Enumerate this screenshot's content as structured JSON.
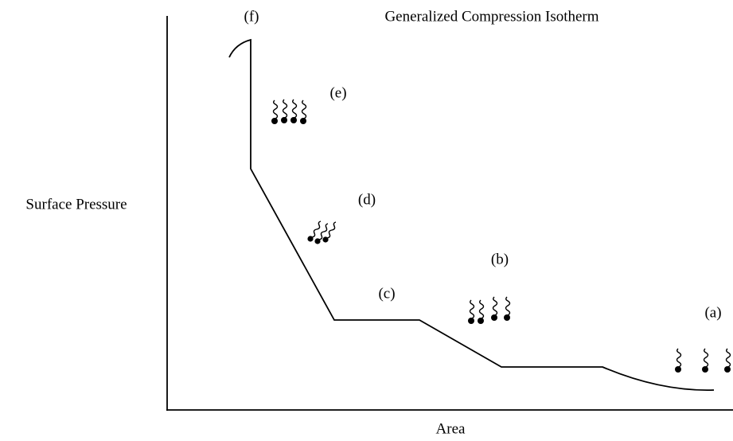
{
  "title": "Generalized Compression Isotherm",
  "y_axis_label": "Surface Pressure",
  "x_axis_label": "Area",
  "phases": [
    {
      "label": "(a)"
    },
    {
      "label": "(b)"
    },
    {
      "label": "(c)"
    },
    {
      "label": "(d)"
    },
    {
      "label": "(e)"
    },
    {
      "label": "(f)"
    }
  ]
}
